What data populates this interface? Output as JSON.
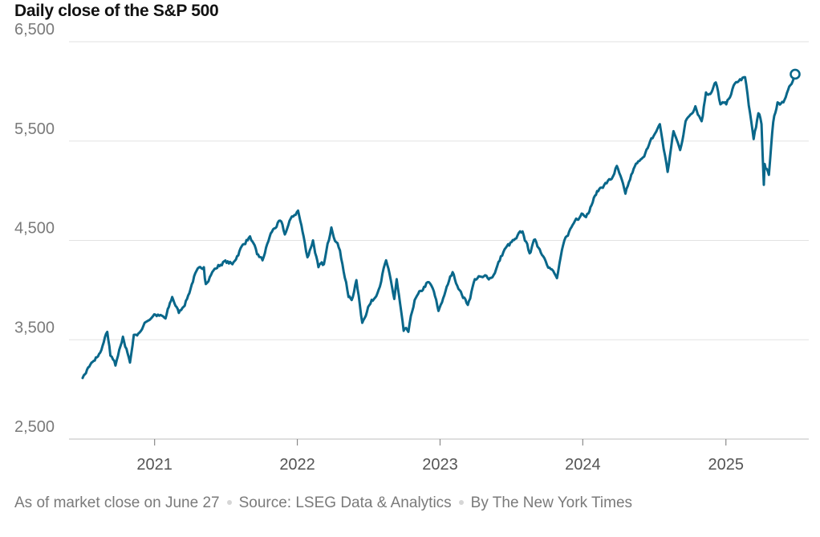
{
  "colors": {
    "line": "#09678a",
    "grid": "#e2e2e2",
    "axis": "#bdbdbd",
    "text": "#121212",
    "muted": "#7a7a7a"
  },
  "footer": {
    "note": "As of market close on June 27",
    "source": "Source: LSEG Data & Analytics",
    "byline": "By The New York Times"
  },
  "chart_data": {
    "type": "line",
    "title": "Daily close of the S&P 500",
    "xlabel": "",
    "ylabel": "",
    "x_range": [
      "2020-07-01",
      "2025-06-27"
    ],
    "ylim": [
      2500,
      6500
    ],
    "yticks": [
      2500,
      3500,
      4500,
      5500,
      6500
    ],
    "ytick_labels": [
      "2,500",
      "3,500",
      "4,500",
      "5,500",
      "6,500"
    ],
    "xticks": [
      "2021-01-01",
      "2022-01-01",
      "2023-01-01",
      "2024-01-01",
      "2025-01-01"
    ],
    "xtick_labels": [
      "2021",
      "2022",
      "2023",
      "2024",
      "2025"
    ],
    "grid": "horizontal",
    "end_marker": true,
    "series": [
      {
        "x": [
          "2020-07-01",
          "2020-07-15",
          "2020-08-01",
          "2020-08-15",
          "2020-09-02",
          "2020-09-10",
          "2020-09-23",
          "2020-10-12",
          "2020-10-30",
          "2020-11-09",
          "2020-11-20",
          "2020-12-10",
          "2020-12-31",
          "2021-01-29",
          "2021-02-15",
          "2021-03-04",
          "2021-03-25",
          "2021-04-15",
          "2021-05-07",
          "2021-05-12",
          "2021-06-01",
          "2021-06-28",
          "2021-07-19",
          "2021-08-15",
          "2021-09-02",
          "2021-09-20",
          "2021-10-04",
          "2021-10-25",
          "2021-11-18",
          "2021-11-30",
          "2021-12-15",
          "2022-01-03",
          "2022-01-20",
          "2022-01-27",
          "2022-02-10",
          "2022-02-24",
          "2022-03-10",
          "2022-03-29",
          "2022-04-20",
          "2022-05-12",
          "2022-05-20",
          "2022-06-01",
          "2022-06-16",
          "2022-07-01",
          "2022-07-25",
          "2022-08-16",
          "2022-09-06",
          "2022-09-12",
          "2022-09-30",
          "2022-10-12",
          "2022-10-28",
          "2022-11-15",
          "2022-11-30",
          "2022-12-13",
          "2022-12-28",
          "2023-01-15",
          "2023-02-02",
          "2023-02-20",
          "2023-03-13",
          "2023-03-31",
          "2023-04-20",
          "2023-05-15",
          "2023-06-15",
          "2023-07-15",
          "2023-07-31",
          "2023-08-18",
          "2023-09-01",
          "2023-09-25",
          "2023-10-27",
          "2023-11-15",
          "2023-12-15",
          "2023-12-29",
          "2024-01-15",
          "2024-02-01",
          "2024-02-15",
          "2024-03-15",
          "2024-03-28",
          "2024-04-19",
          "2024-05-10",
          "2024-05-25",
          "2024-06-15",
          "2024-07-16",
          "2024-08-05",
          "2024-08-20",
          "2024-09-06",
          "2024-09-20",
          "2024-10-15",
          "2024-10-31",
          "2024-11-11",
          "2024-11-25",
          "2024-12-06",
          "2024-12-18",
          "2025-01-02",
          "2025-01-24",
          "2025-02-19",
          "2025-03-13",
          "2025-03-25",
          "2025-04-02",
          "2025-04-08",
          "2025-04-10",
          "2025-04-21",
          "2025-05-02",
          "2025-05-13",
          "2025-05-28",
          "2025-06-12",
          "2025-06-27"
        ],
        "values": [
          3115,
          3220,
          3290,
          3370,
          3580,
          3340,
          3240,
          3530,
          3270,
          3550,
          3560,
          3680,
          3756,
          3714,
          3930,
          3770,
          3910,
          4170,
          4230,
          4060,
          4200,
          4290,
          4260,
          4460,
          4540,
          4360,
          4300,
          4570,
          4700,
          4560,
          4720,
          4800,
          4480,
          4330,
          4500,
          4230,
          4260,
          4630,
          4400,
          3930,
          3900,
          4100,
          3670,
          3830,
          3970,
          4300,
          3910,
          4110,
          3590,
          3580,
          3900,
          3990,
          4080,
          4020,
          3790,
          3990,
          4180,
          4000,
          3850,
          4110,
          4130,
          4130,
          4410,
          4520,
          4590,
          4370,
          4510,
          4320,
          4120,
          4500,
          4720,
          4770,
          4770,
          4950,
          5030,
          5120,
          5250,
          4970,
          5220,
          5300,
          5430,
          5670,
          5190,
          5600,
          5410,
          5700,
          5850,
          5700,
          5990,
          5990,
          6090,
          5870,
          5870,
          6080,
          6144,
          5520,
          5780,
          5670,
          5060,
          5270,
          5160,
          5690,
          5890,
          5890,
          6050,
          6173
        ]
      }
    ]
  }
}
